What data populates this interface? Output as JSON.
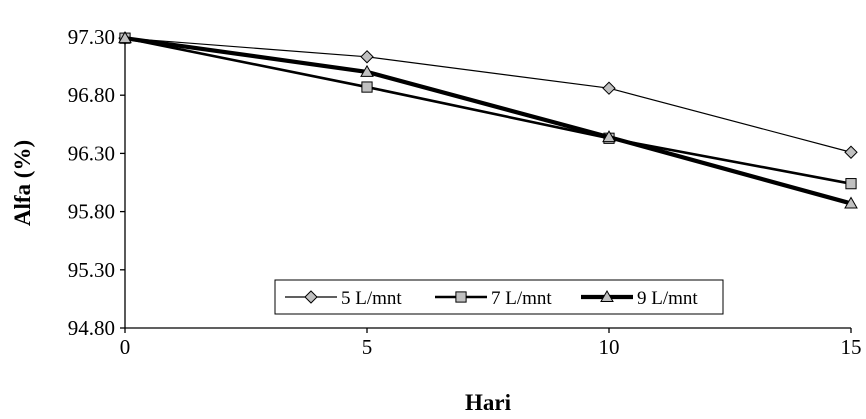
{
  "chart_data": {
    "type": "line",
    "xlabel": "Hari",
    "ylabel": "Alfa (%)",
    "x": [
      0,
      5,
      10,
      15
    ],
    "x_ticks": [
      "0",
      "5",
      "10",
      "15"
    ],
    "xlim": [
      0,
      15
    ],
    "y_ticks": [
      "94.80",
      "95.30",
      "95.80",
      "96.30",
      "96.80",
      "97.30"
    ],
    "ylim": [
      94.8,
      97.3
    ],
    "legend_position": "bottom-right",
    "grid": false,
    "series": [
      {
        "name": "5 L/mnt",
        "values": [
          97.29,
          97.13,
          96.86,
          96.31
        ],
        "marker": "diamond",
        "color": "#000000",
        "marker_fill": "#c0c0c0"
      },
      {
        "name": "7 L/mnt",
        "values": [
          97.29,
          96.87,
          96.43,
          96.04
        ],
        "marker": "square",
        "color": "#000000",
        "marker_fill": "#c0c0c0"
      },
      {
        "name": "9 L/mnt",
        "values": [
          97.29,
          97.0,
          96.44,
          95.87
        ],
        "marker": "triangle",
        "color": "#000000",
        "marker_fill": "#c0c0c0"
      }
    ]
  }
}
